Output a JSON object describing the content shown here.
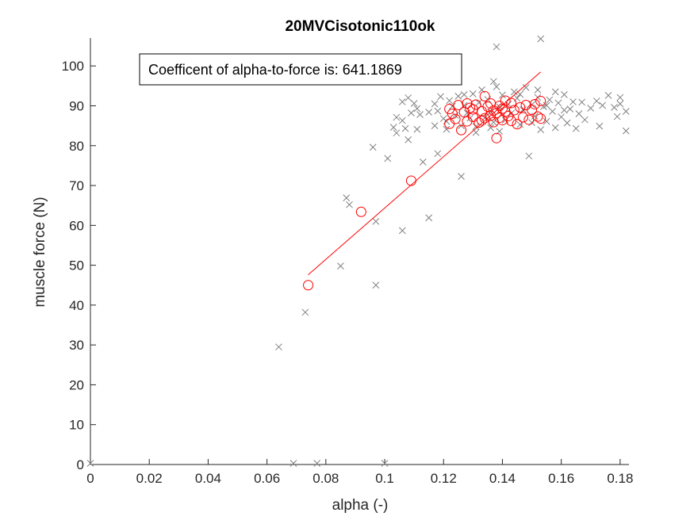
{
  "chart_data": {
    "type": "scatter",
    "title": "20MVCisotonic110ok",
    "xlabel": "alpha (-)",
    "ylabel": "muscle force (N)",
    "xlim": [
      0,
      0.183
    ],
    "ylim": [
      0,
      107
    ],
    "xticks": [
      "0",
      "0.02",
      "0.04",
      "0.06",
      "0.08",
      "0.1",
      "0.12",
      "0.14",
      "0.16",
      "0.18"
    ],
    "yticks": [
      "0",
      "10",
      "20",
      "30",
      "40",
      "50",
      "60",
      "70",
      "80",
      "90",
      "100"
    ],
    "xtick_values": [
      0,
      0.02,
      0.04,
      0.06,
      0.08,
      0.1,
      0.12,
      0.14,
      0.16,
      0.18
    ],
    "ytick_values": [
      0,
      10,
      20,
      30,
      40,
      50,
      60,
      70,
      80,
      90,
      100
    ],
    "grid": false,
    "annotation": "Coefficent of alpha-to-force is: 641.1869",
    "colors": {
      "all_points": "#808080",
      "selected_points": "#ff0000",
      "fit_line": "#ff0000"
    },
    "series": [
      {
        "marker": "x",
        "color": "#808080",
        "points": [
          [
            0.0,
            0.3
          ],
          [
            0.069,
            0.3
          ],
          [
            0.077,
            0.3
          ],
          [
            0.1,
            0.3
          ],
          [
            0.064,
            29.5
          ],
          [
            0.073,
            38.2
          ],
          [
            0.085,
            49.8
          ],
          [
            0.097,
            45.0
          ],
          [
            0.087,
            66.9
          ],
          [
            0.088,
            65.2
          ],
          [
            0.097,
            61.0
          ],
          [
            0.106,
            58.7
          ],
          [
            0.115,
            61.9
          ],
          [
            0.126,
            72.3
          ],
          [
            0.096,
            79.6
          ],
          [
            0.101,
            76.8
          ],
          [
            0.113,
            75.9
          ],
          [
            0.118,
            78.0
          ],
          [
            0.104,
            83.2
          ],
          [
            0.107,
            84.3
          ],
          [
            0.108,
            81.5
          ],
          [
            0.103,
            84.6
          ],
          [
            0.106,
            86.3
          ],
          [
            0.109,
            88.2
          ],
          [
            0.11,
            90.6
          ],
          [
            0.111,
            89.3
          ],
          [
            0.104,
            87.1
          ],
          [
            0.106,
            91.0
          ],
          [
            0.108,
            92.0
          ],
          [
            0.112,
            87.8
          ],
          [
            0.111,
            84.1
          ],
          [
            0.117,
            90.5
          ],
          [
            0.118,
            88.7
          ],
          [
            0.119,
            92.3
          ],
          [
            0.12,
            86.8
          ],
          [
            0.121,
            84.1
          ],
          [
            0.122,
            91.3
          ],
          [
            0.123,
            89.9
          ],
          [
            0.124,
            87.6
          ],
          [
            0.125,
            92.4
          ],
          [
            0.126,
            85.0
          ],
          [
            0.127,
            90.1
          ],
          [
            0.128,
            88.2
          ],
          [
            0.129,
            86.9
          ],
          [
            0.13,
            93.0
          ],
          [
            0.131,
            84.8
          ],
          [
            0.132,
            90.8
          ],
          [
            0.133,
            94.0
          ],
          [
            0.134,
            87.0
          ],
          [
            0.135,
            91.6
          ],
          [
            0.136,
            88.5
          ],
          [
            0.137,
            85.9
          ],
          [
            0.137,
            96.1
          ],
          [
            0.138,
            94.8
          ],
          [
            0.138,
            104.8
          ],
          [
            0.139,
            89.7
          ],
          [
            0.14,
            92.7
          ],
          [
            0.141,
            86.4
          ],
          [
            0.142,
            90.4
          ],
          [
            0.143,
            88.1
          ],
          [
            0.144,
            93.5
          ],
          [
            0.145,
            91.9
          ],
          [
            0.146,
            85.3
          ],
          [
            0.147,
            89.0
          ],
          [
            0.148,
            94.6
          ],
          [
            0.149,
            77.4
          ],
          [
            0.15,
            90.3
          ],
          [
            0.151,
            87.4
          ],
          [
            0.152,
            92.1
          ],
          [
            0.153,
            106.8
          ],
          [
            0.153,
            84.0
          ],
          [
            0.154,
            89.8
          ],
          [
            0.155,
            86.1
          ],
          [
            0.156,
            91.5
          ],
          [
            0.157,
            88.6
          ],
          [
            0.158,
            84.5
          ],
          [
            0.159,
            90.7
          ],
          [
            0.16,
            87.2
          ],
          [
            0.161,
            92.8
          ],
          [
            0.162,
            85.7
          ],
          [
            0.163,
            89.2
          ],
          [
            0.164,
            91.0
          ],
          [
            0.165,
            84.3
          ],
          [
            0.166,
            88.0
          ],
          [
            0.167,
            90.9
          ],
          [
            0.168,
            86.5
          ],
          [
            0.17,
            89.4
          ],
          [
            0.172,
            91.2
          ],
          [
            0.173,
            84.9
          ],
          [
            0.174,
            90.1
          ],
          [
            0.176,
            92.6
          ],
          [
            0.178,
            89.6
          ],
          [
            0.179,
            87.3
          ],
          [
            0.18,
            92.1
          ],
          [
            0.18,
            90.5
          ],
          [
            0.182,
            88.6
          ],
          [
            0.182,
            83.7
          ],
          [
            0.158,
            93.5
          ],
          [
            0.161,
            88.9
          ],
          [
            0.146,
            92.9
          ],
          [
            0.15,
            85.8
          ],
          [
            0.152,
            94.0
          ],
          [
            0.155,
            90.1
          ],
          [
            0.139,
            83.6
          ],
          [
            0.136,
            84.5
          ],
          [
            0.131,
            83.3
          ],
          [
            0.127,
            92.8
          ],
          [
            0.121,
            86.1
          ],
          [
            0.117,
            85.0
          ],
          [
            0.115,
            88.4
          ]
        ]
      },
      {
        "marker": "o",
        "color": "#ff0000",
        "points": [
          [
            0.074,
            45.0
          ],
          [
            0.092,
            63.4
          ],
          [
            0.109,
            71.2
          ],
          [
            0.122,
            85.5
          ],
          [
            0.122,
            89.2
          ],
          [
            0.123,
            88.0
          ],
          [
            0.124,
            86.7
          ],
          [
            0.125,
            90.2
          ],
          [
            0.126,
            83.9
          ],
          [
            0.127,
            88.4
          ],
          [
            0.128,
            86.1
          ],
          [
            0.129,
            89.5
          ],
          [
            0.13,
            87.2
          ],
          [
            0.131,
            90.3
          ],
          [
            0.132,
            85.8
          ],
          [
            0.133,
            88.6
          ],
          [
            0.134,
            92.4
          ],
          [
            0.134,
            86.9
          ],
          [
            0.135,
            89.8
          ],
          [
            0.136,
            87.5
          ],
          [
            0.136,
            90.6
          ],
          [
            0.137,
            85.9
          ],
          [
            0.138,
            88.2
          ],
          [
            0.138,
            81.9
          ],
          [
            0.139,
            90.0
          ],
          [
            0.139,
            87.0
          ],
          [
            0.14,
            89.3
          ],
          [
            0.14,
            86.4
          ],
          [
            0.141,
            91.3
          ],
          [
            0.141,
            88.5
          ],
          [
            0.142,
            87.4
          ],
          [
            0.143,
            90.7
          ],
          [
            0.143,
            86.2
          ],
          [
            0.144,
            88.9
          ],
          [
            0.145,
            85.4
          ],
          [
            0.146,
            89.6
          ],
          [
            0.147,
            87.1
          ],
          [
            0.148,
            90.2
          ],
          [
            0.149,
            86.5
          ],
          [
            0.15,
            89.0
          ],
          [
            0.151,
            90.4
          ],
          [
            0.152,
            87.3
          ],
          [
            0.153,
            91.2
          ],
          [
            0.153,
            86.8
          ],
          [
            0.137,
            88.8
          ],
          [
            0.133,
            86.3
          ],
          [
            0.13,
            89.1
          ],
          [
            0.128,
            90.6
          ]
        ]
      },
      {
        "type": "line",
        "color": "#ff0000",
        "points": [
          [
            0.074,
            47.6
          ],
          [
            0.153,
            98.5
          ]
        ]
      }
    ]
  }
}
